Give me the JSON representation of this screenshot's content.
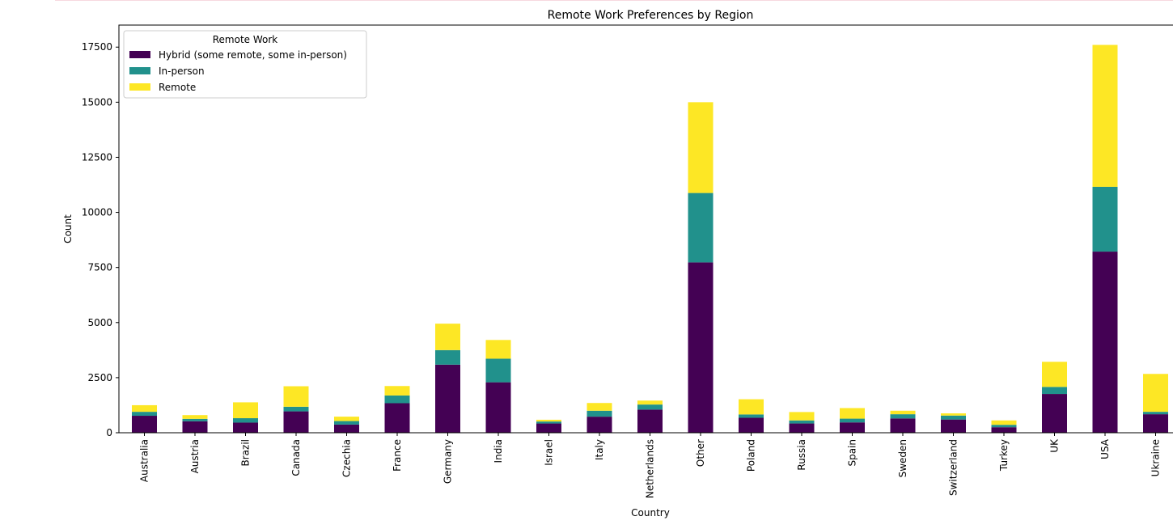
{
  "chart_data": {
    "type": "bar",
    "stacked": true,
    "title": "Remote Work Preferences by Region",
    "xlabel": "Country",
    "ylabel": "Count",
    "ylim": [
      0,
      18500
    ],
    "yticks": [
      0,
      2500,
      5000,
      7500,
      10000,
      12500,
      15000,
      17500
    ],
    "grid": false,
    "legend_title": "Remote Work",
    "legend_position": "top-left",
    "categories": [
      "Australia",
      "Austria",
      "Brazil",
      "Canada",
      "Czechia",
      "France",
      "Germany",
      "India",
      "Israel",
      "Italy",
      "Netherlands",
      "Other",
      "Poland",
      "Russia",
      "Spain",
      "Sweden",
      "Switzerland",
      "Turkey",
      "UK",
      "USA",
      "Ukraine"
    ],
    "series": [
      {
        "name": "Hybrid (some remote, some in-person)",
        "color": "#440154",
        "values": [
          770,
          520,
          460,
          970,
          370,
          1340,
          3090,
          2290,
          420,
          730,
          1050,
          7730,
          680,
          420,
          470,
          650,
          600,
          250,
          1760,
          8220,
          840
        ]
      },
      {
        "name": "In-person",
        "color": "#21918c",
        "values": [
          180,
          110,
          200,
          210,
          160,
          350,
          660,
          1070,
          90,
          270,
          230,
          3150,
          150,
          140,
          170,
          190,
          180,
          110,
          320,
          2940,
          110
        ]
      },
      {
        "name": "Remote",
        "color": "#fde725",
        "values": [
          300,
          170,
          720,
          930,
          200,
          430,
          1200,
          850,
          80,
          350,
          180,
          4120,
          690,
          380,
          480,
          160,
          100,
          200,
          1140,
          6440,
          1720
        ]
      }
    ]
  }
}
